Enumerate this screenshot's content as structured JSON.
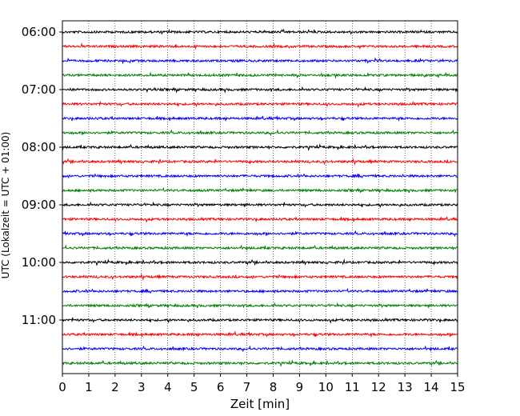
{
  "chart_data": {
    "type": "line",
    "title": "",
    "xlabel": "Zeit  [min]",
    "ylabel": "UTC (Lokalzeit = UTC + 01:00)",
    "xlim": [
      0,
      15
    ],
    "x_ticks": [
      0,
      1,
      2,
      3,
      4,
      5,
      6,
      7,
      8,
      9,
      10,
      11,
      12,
      13,
      14,
      15
    ],
    "grid": "vertical dotted at each minute",
    "y_ticks": [
      "06:00",
      "07:00",
      "08:00",
      "09:00",
      "10:00",
      "11:00"
    ],
    "trace_interval_min": 15,
    "trace_colors": [
      "#000000",
      "#ff0000",
      "#0000ff",
      "#008000"
    ],
    "traces": [
      {
        "start": "06:00",
        "color": "#000000"
      },
      {
        "start": "06:15",
        "color": "#ff0000"
      },
      {
        "start": "06:30",
        "color": "#0000ff"
      },
      {
        "start": "06:45",
        "color": "#008000"
      },
      {
        "start": "07:00",
        "color": "#000000"
      },
      {
        "start": "07:15",
        "color": "#ff0000"
      },
      {
        "start": "07:30",
        "color": "#0000ff"
      },
      {
        "start": "07:45",
        "color": "#008000"
      },
      {
        "start": "08:00",
        "color": "#000000"
      },
      {
        "start": "08:15",
        "color": "#ff0000"
      },
      {
        "start": "08:30",
        "color": "#0000ff"
      },
      {
        "start": "08:45",
        "color": "#008000"
      },
      {
        "start": "09:00",
        "color": "#000000"
      },
      {
        "start": "09:15",
        "color": "#ff0000"
      },
      {
        "start": "09:30",
        "color": "#0000ff"
      },
      {
        "start": "09:45",
        "color": "#008000"
      },
      {
        "start": "10:00",
        "color": "#000000"
      },
      {
        "start": "10:15",
        "color": "#ff0000"
      },
      {
        "start": "10:30",
        "color": "#0000ff"
      },
      {
        "start": "10:45",
        "color": "#008000"
      },
      {
        "start": "11:00",
        "color": "#000000"
      },
      {
        "start": "11:15",
        "color": "#ff0000"
      },
      {
        "start": "11:30",
        "color": "#0000ff"
      },
      {
        "start": "11:45",
        "color": "#008000"
      }
    ]
  }
}
